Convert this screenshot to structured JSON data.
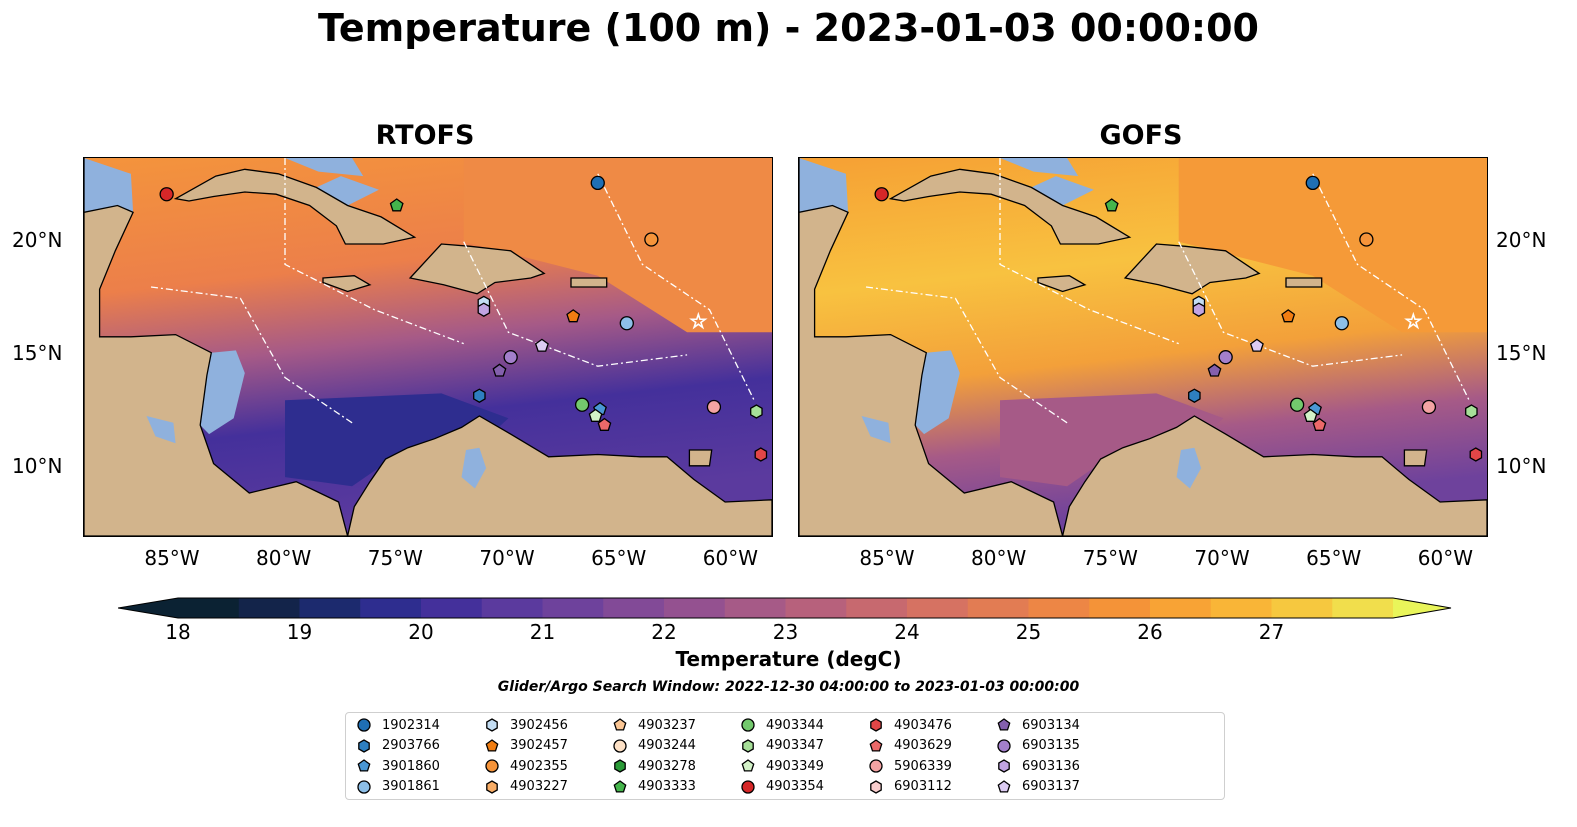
{
  "title": "Temperature (100 m) - 2023-01-03 00:00:00",
  "panels": [
    {
      "title": "RTOFS",
      "variant": "rtofs"
    },
    {
      "title": "GOFS",
      "variant": "gofs"
    }
  ],
  "axes": {
    "x_ticks": [
      "85°W",
      "80°W",
      "75°W",
      "70°W",
      "65°W",
      "60°W"
    ],
    "y_ticks": [
      "20°N",
      "15°N",
      "10°N"
    ]
  },
  "colorbar": {
    "ticks": [
      "18",
      "19",
      "20",
      "21",
      "22",
      "23",
      "24",
      "25",
      "26",
      "27"
    ],
    "label": "Temperature (degC)",
    "colors": [
      "#0b2233",
      "#13244a",
      "#1c2a6e",
      "#2e2d8f",
      "#44309b",
      "#5b3a9e",
      "#6e429c",
      "#824a97",
      "#945190",
      "#a65a87",
      "#b7617c",
      "#c7696f",
      "#d67262",
      "#e27c53",
      "#ed8645",
      "#f49338",
      "#f8a335",
      "#f9b537",
      "#f6c83f",
      "#f1de4c"
    ],
    "extend_min_color": "#0b2233",
    "extend_max_color": "#e9f55a"
  },
  "search_window": "Glider/Argo Search Window: 2022-12-30 04:00:00 to 2023-01-03 00:00:00",
  "legend": [
    {
      "label": "1902314",
      "marker": "circle",
      "color": "#1f6fb4"
    },
    {
      "label": "2903766",
      "marker": "hexagon",
      "color": "#2e7fc0"
    },
    {
      "label": "3901860",
      "marker": "pentagon",
      "color": "#4a97d4"
    },
    {
      "label": "3901861",
      "marker": "circle",
      "color": "#8dbfe8"
    },
    {
      "label": "3902456",
      "marker": "hexagon",
      "color": "#c4def4"
    },
    {
      "label": "3902457",
      "marker": "pentagon",
      "color": "#f07d12"
    },
    {
      "label": "4902355",
      "marker": "circle",
      "color": "#f6943a"
    },
    {
      "label": "4903227",
      "marker": "hexagon",
      "color": "#f9ad66"
    },
    {
      "label": "4903237",
      "marker": "pentagon",
      "color": "#fbc694"
    },
    {
      "label": "4903244",
      "marker": "circle",
      "color": "#fde1c6"
    },
    {
      "label": "4903278",
      "marker": "hexagon",
      "color": "#2a9a37"
    },
    {
      "label": "4903333",
      "marker": "pentagon",
      "color": "#45b54c"
    },
    {
      "label": "4903344",
      "marker": "circle",
      "color": "#73c96d"
    },
    {
      "label": "4903347",
      "marker": "hexagon",
      "color": "#a6df98"
    },
    {
      "label": "4903349",
      "marker": "pentagon",
      "color": "#d3f2c8"
    },
    {
      "label": "4903354",
      "marker": "circle",
      "color": "#d62728"
    },
    {
      "label": "4903476",
      "marker": "hexagon",
      "color": "#e24647"
    },
    {
      "label": "4903629",
      "marker": "pentagon",
      "color": "#ec6969"
    },
    {
      "label": "5906339",
      "marker": "circle",
      "color": "#f4a3a3"
    },
    {
      "label": "6903112",
      "marker": "hexagon",
      "color": "#f9cece"
    },
    {
      "label": "6903134",
      "marker": "pentagon",
      "color": "#8460ad"
    },
    {
      "label": "6903135",
      "marker": "circle",
      "color": "#a37fcb"
    },
    {
      "label": "6903136",
      "marker": "hexagon",
      "color": "#c1a4e2"
    },
    {
      "label": "6903137",
      "marker": "pentagon",
      "color": "#dccbf2"
    }
  ],
  "map_markers": [
    {
      "label": "4903354",
      "lon": -85.3,
      "lat": 22.1
    },
    {
      "label": "1902314",
      "lon": -66.0,
      "lat": 22.6
    },
    {
      "label": "4903333",
      "lon": -75.0,
      "lat": 21.6
    },
    {
      "label": "4902355",
      "lon": -63.6,
      "lat": 20.1
    },
    {
      "label": "3902456",
      "lon": -71.1,
      "lat": 17.3
    },
    {
      "label": "6903136",
      "lon": -71.1,
      "lat": 17.0
    },
    {
      "label": "3902457",
      "lon": -67.1,
      "lat": 16.7
    },
    {
      "label": "3901861",
      "lon": -64.7,
      "lat": 16.4
    },
    {
      "label": "6903135",
      "lon": -69.9,
      "lat": 14.9
    },
    {
      "label": "6903137",
      "lon": -68.5,
      "lat": 15.4
    },
    {
      "label": "6903134",
      "lon": -70.4,
      "lat": 14.3
    },
    {
      "label": "2903766",
      "lon": -71.3,
      "lat": 13.2
    },
    {
      "label": "4903344",
      "lon": -66.7,
      "lat": 12.8
    },
    {
      "label": "3901860",
      "lon": -65.9,
      "lat": 12.6
    },
    {
      "label": "4903349",
      "lon": -66.1,
      "lat": 12.3
    },
    {
      "label": "4903629",
      "lon": -65.7,
      "lat": 11.9
    },
    {
      "label": "5906339",
      "lon": -60.8,
      "lat": 12.7
    },
    {
      "label": "4903347",
      "lon": -58.9,
      "lat": 12.5
    },
    {
      "label": "4903476",
      "lon": -58.7,
      "lat": 10.6
    }
  ]
}
